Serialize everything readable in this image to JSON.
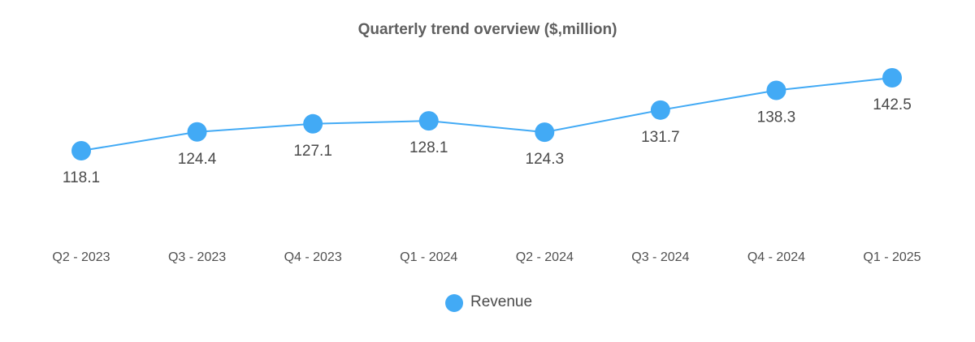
{
  "chart_data": {
    "type": "line",
    "title": "Quarterly trend overview ($,million)",
    "xlabel": "",
    "ylabel": "",
    "categories": [
      "Q2 - 2023",
      "Q3 - 2023",
      "Q4 - 2023",
      "Q1 - 2024",
      "Q2 - 2024",
      "Q3 - 2024",
      "Q4 - 2024",
      "Q1 - 2025"
    ],
    "series": [
      {
        "name": "Revenue",
        "values": [
          118.1,
          124.4,
          127.1,
          128.1,
          124.3,
          131.7,
          138.3,
          142.5
        ],
        "labels": [
          "118.1",
          "124.4",
          "127.1",
          "128.1",
          "124.3",
          "131.7",
          "138.3",
          "142.5"
        ],
        "label_positions": [
          "below",
          "below",
          "below",
          "below",
          "below",
          "below",
          "below",
          "below"
        ],
        "color": "#42aaf5"
      }
    ],
    "ylim": [
      100,
      150
    ],
    "grid": false,
    "legend": "bottom-center"
  }
}
